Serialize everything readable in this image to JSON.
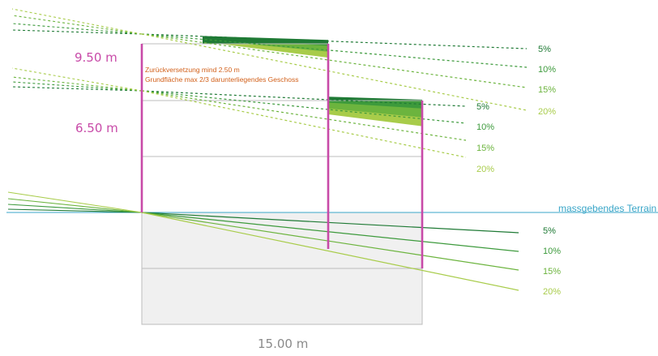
{
  "colors": {
    "magenta": "#c84aa8",
    "terrain": "#3aa6c8",
    "note": "#d2601a",
    "text_gray": "#8a8a8a",
    "green_5": "#1f7a35",
    "green_10": "#3d9a3c",
    "green_15": "#6cb43e",
    "green_20": "#a8cc4a",
    "basement_fill": "#f0f0f0",
    "storey_line": "#bdbdbd"
  },
  "labels": {
    "height_top": "9.50 m",
    "height_mid": "6.50 m",
    "width": "15.00 m",
    "terrain": "massgebendes Terrain",
    "note_line1": "Zurückversetzung mind 2.50 m",
    "note_line2": "Grundfläche max 2/3 darunterliegendes Geschoss"
  },
  "slope_groups": {
    "attic": [
      "5%",
      "10%",
      "15%",
      "20%"
    ],
    "upper": [
      "5%",
      "10%",
      "15%",
      "20%"
    ],
    "terrain": [
      "5%",
      "10%",
      "15%",
      "20%"
    ]
  }
}
